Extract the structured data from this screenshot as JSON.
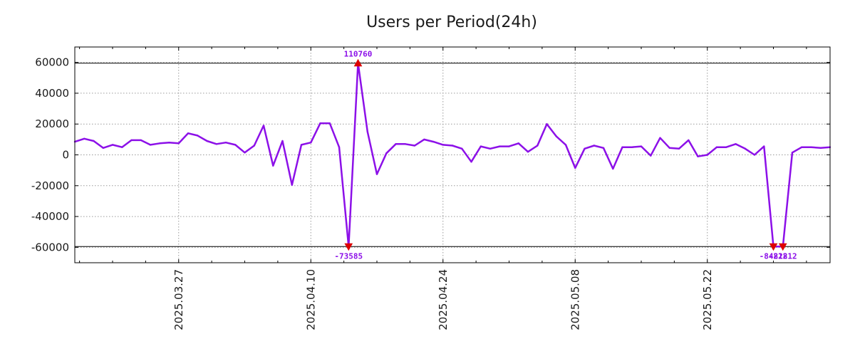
{
  "colors": {
    "series": "#8c10e8",
    "marker": "#dd0000",
    "annotation": "#8c10e8",
    "grid": "#9a9a9a",
    "frame": "#000000",
    "limit_line": "#000000"
  },
  "chart_data": {
    "type": "line",
    "title": "Users per Period(24h)",
    "xlabel": "",
    "ylabel": "",
    "grid": true,
    "y_range": [
      -70000,
      70000
    ],
    "y_ticks": [
      60000,
      40000,
      20000,
      0,
      -20000,
      -40000,
      -60000
    ],
    "y_tick_labels": [
      "60000",
      "40000",
      "20000",
      "0",
      "-20000",
      "-40000",
      "-60000"
    ],
    "x_range": [
      0,
      80
    ],
    "x_ticks": [
      11,
      25,
      39,
      53,
      67
    ],
    "x_tick_labels": [
      "2025.03.27",
      "2025.04.10",
      "2025.04.24",
      "2025.05.08",
      "2025.05.22"
    ],
    "x_minor_step": 3.5,
    "limit_lines": [
      59500,
      -59500
    ],
    "series": [
      {
        "name": "Users",
        "values": [
          8500,
          10500,
          9000,
          4500,
          6500,
          5000,
          9500,
          9500,
          6500,
          7500,
          8000,
          7500,
          14000,
          12500,
          9000,
          7000,
          8000,
          6500,
          1500,
          6000,
          19000,
          -7000,
          9000,
          -19500,
          6500,
          8000,
          20500,
          20500,
          5000,
          -59500,
          59500,
          15000,
          -12500,
          1000,
          7000,
          7000,
          6000,
          10000,
          8500,
          6500,
          6000,
          4000,
          -4500,
          5500,
          4000,
          5500,
          5500,
          7500,
          2000,
          6000,
          20000,
          12000,
          6500,
          -8500,
          4000,
          6000,
          4500,
          -9000,
          5000,
          5000,
          5500,
          -500,
          11000,
          4500,
          4000,
          9500,
          -1000,
          0,
          5000,
          5000,
          7000,
          4000,
          0,
          5500,
          -59500,
          -59500,
          1500,
          5000,
          5000,
          4500,
          5000
        ]
      }
    ],
    "annotations": [
      {
        "index": 30,
        "label": "110760",
        "position": "above",
        "marker": "up-triangle"
      },
      {
        "index": 29,
        "label": "-73585",
        "position": "below",
        "marker": "down-triangle"
      },
      {
        "index": 74,
        "label": "-84222",
        "position": "below",
        "marker": "down-triangle"
      },
      {
        "index": 75,
        "label": "-81812",
        "position": "below",
        "marker": "down-triangle"
      }
    ]
  }
}
